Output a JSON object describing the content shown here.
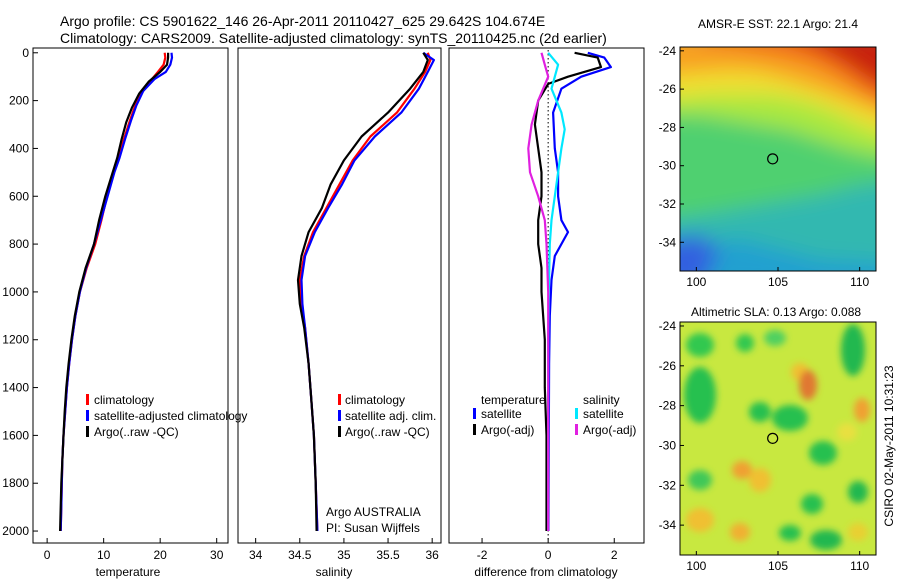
{
  "header": {
    "line1": "Argo profile: CS 5901622_146 26-Apr-2011 20110427_625 29.642S 104.674E",
    "line2": "Climatology: CARS2009. Satellite-adjusted climatology: synTS_20110425.nc (2d earlier)"
  },
  "colors": {
    "red": "#ff0000",
    "blue": "#0000ff",
    "black": "#000000",
    "cyan": "#00e8ff",
    "magenta": "#e020e0"
  },
  "chart_data": [
    {
      "type": "line",
      "xlabel": "temperature",
      "ylabel": "",
      "xlim": [
        -2.5,
        32
      ],
      "ylim": [
        2050,
        -20
      ],
      "xticks": [
        0,
        10,
        20,
        30
      ],
      "yticks": [
        0,
        200,
        400,
        600,
        800,
        1000,
        1200,
        1400,
        1600,
        1800,
        2000
      ],
      "legend": [
        "climatology",
        "satellite-adjusted climatology",
        "Argo(..raw -QC)"
      ],
      "series": [
        {
          "name": "climatology",
          "color": "red",
          "points": [
            [
              20.8,
              0
            ],
            [
              20.9,
              20
            ],
            [
              20.6,
              50
            ],
            [
              19.6,
              80
            ],
            [
              18.2,
              120
            ],
            [
              16.7,
              170
            ],
            [
              15.6,
              220
            ],
            [
              14.7,
              280
            ],
            [
              13.6,
              360
            ],
            [
              12.6,
              440
            ],
            [
              11.8,
              500
            ],
            [
              10.6,
              600
            ],
            [
              9.6,
              700
            ],
            [
              8.5,
              800
            ],
            [
              7.0,
              900
            ],
            [
              5.8,
              1000
            ],
            [
              5.0,
              1100
            ],
            [
              4.4,
              1200
            ],
            [
              3.9,
              1300
            ],
            [
              3.5,
              1400
            ],
            [
              3.2,
              1500
            ],
            [
              2.9,
              1600
            ],
            [
              2.7,
              1700
            ],
            [
              2.6,
              1800
            ],
            [
              2.5,
              1900
            ],
            [
              2.4,
              2000
            ]
          ]
        },
        {
          "name": "satellite-adjusted climatology",
          "color": "blue",
          "points": [
            [
              22.0,
              0
            ],
            [
              22.1,
              20
            ],
            [
              21.8,
              50
            ],
            [
              21.0,
              80
            ],
            [
              19.0,
              110
            ],
            [
              17.0,
              160
            ],
            [
              15.8,
              220
            ],
            [
              14.9,
              280
            ],
            [
              13.8,
              360
            ],
            [
              12.8,
              440
            ],
            [
              11.9,
              500
            ],
            [
              10.7,
              600
            ],
            [
              9.5,
              700
            ],
            [
              8.3,
              800
            ],
            [
              6.9,
              900
            ],
            [
              5.8,
              1000
            ],
            [
              5.0,
              1100
            ],
            [
              4.4,
              1200
            ],
            [
              3.9,
              1300
            ],
            [
              3.5,
              1400
            ],
            [
              3.2,
              1500
            ],
            [
              2.9,
              1600
            ],
            [
              2.7,
              1700
            ],
            [
              2.6,
              1800
            ],
            [
              2.5,
              1900
            ],
            [
              2.4,
              2000
            ]
          ]
        },
        {
          "name": "Argo(..raw -QC)",
          "color": "black",
          "points": [
            [
              21.4,
              0
            ],
            [
              21.4,
              20
            ],
            [
              21.2,
              50
            ],
            [
              20.0,
              80
            ],
            [
              18.0,
              120
            ],
            [
              16.3,
              170
            ],
            [
              15.0,
              230
            ],
            [
              14.0,
              290
            ],
            [
              13.2,
              360
            ],
            [
              12.4,
              440
            ],
            [
              11.6,
              500
            ],
            [
              10.3,
              600
            ],
            [
              9.2,
              700
            ],
            [
              8.3,
              800
            ],
            [
              6.8,
              900
            ],
            [
              5.7,
              1000
            ],
            [
              4.9,
              1100
            ],
            [
              4.3,
              1200
            ],
            [
              3.8,
              1300
            ],
            [
              3.4,
              1400
            ],
            [
              3.1,
              1500
            ],
            [
              2.9,
              1600
            ],
            [
              2.7,
              1700
            ],
            [
              2.5,
              1800
            ],
            [
              2.4,
              1900
            ],
            [
              2.3,
              2000
            ]
          ]
        }
      ]
    },
    {
      "type": "line",
      "xlabel": "salinity",
      "ylabel": "",
      "xlim": [
        33.8,
        36.1
      ],
      "ylim": [
        2050,
        -20
      ],
      "xticks": [
        "34",
        "34.5",
        "35",
        "35.5",
        "36"
      ],
      "yticks": [],
      "legend": [
        "climatology",
        "satellite adj. clim.",
        "Argo(..raw -QC)"
      ],
      "annotation": [
        "Argo AUSTRALIA",
        "PI: Susan Wijffels"
      ],
      "series": [
        {
          "name": "climatology",
          "color": "red",
          "points": [
            [
              35.95,
              0
            ],
            [
              35.98,
              30
            ],
            [
              35.92,
              80
            ],
            [
              35.8,
              150
            ],
            [
              35.6,
              250
            ],
            [
              35.3,
              350
            ],
            [
              35.1,
              450
            ],
            [
              34.95,
              550
            ],
            [
              34.8,
              650
            ],
            [
              34.65,
              750
            ],
            [
              34.55,
              850
            ],
            [
              34.5,
              950
            ],
            [
              34.52,
              1050
            ],
            [
              34.56,
              1150
            ],
            [
              34.6,
              1300
            ],
            [
              34.63,
              1450
            ],
            [
              34.66,
              1600
            ],
            [
              34.68,
              1800
            ],
            [
              34.7,
              2000
            ]
          ]
        },
        {
          "name": "satellite adj. clim.",
          "color": "blue",
          "points": [
            [
              35.9,
              0
            ],
            [
              36.02,
              30
            ],
            [
              35.95,
              80
            ],
            [
              35.85,
              150
            ],
            [
              35.65,
              250
            ],
            [
              35.35,
              350
            ],
            [
              35.12,
              450
            ],
            [
              34.98,
              550
            ],
            [
              34.82,
              650
            ],
            [
              34.67,
              750
            ],
            [
              34.56,
              850
            ],
            [
              34.52,
              950
            ],
            [
              34.53,
              1050
            ],
            [
              34.56,
              1150
            ],
            [
              34.6,
              1300
            ],
            [
              34.63,
              1450
            ],
            [
              34.66,
              1600
            ],
            [
              34.68,
              1800
            ],
            [
              34.7,
              2000
            ]
          ]
        },
        {
          "name": "Argo(..raw -QC)",
          "color": "black",
          "points": [
            [
              35.9,
              0
            ],
            [
              35.95,
              30
            ],
            [
              35.9,
              80
            ],
            [
              35.75,
              150
            ],
            [
              35.5,
              250
            ],
            [
              35.2,
              350
            ],
            [
              35.0,
              450
            ],
            [
              34.85,
              550
            ],
            [
              34.75,
              650
            ],
            [
              34.6,
              750
            ],
            [
              34.52,
              850
            ],
            [
              34.48,
              950
            ],
            [
              34.5,
              1050
            ],
            [
              34.55,
              1150
            ],
            [
              34.6,
              1300
            ],
            [
              34.63,
              1450
            ],
            [
              34.66,
              1600
            ],
            [
              34.68,
              1800
            ],
            [
              34.69,
              2000
            ]
          ]
        }
      ]
    },
    {
      "type": "line",
      "xlabel": "difference from climatology",
      "ylabel": "",
      "xlim": [
        -3.0,
        2.9
      ],
      "ylim": [
        2050,
        -20
      ],
      "xticks": [
        "-2",
        "0",
        "2"
      ],
      "yticks": [],
      "legend": [
        "temperature",
        "satellite",
        "Argo(-adj)",
        "salinity",
        "satellite",
        "Argo(-adj)"
      ],
      "series": [
        {
          "name": "satellite",
          "quantity": "temperature",
          "color": "blue",
          "points": [
            [
              1.2,
              0
            ],
            [
              1.7,
              20
            ],
            [
              1.9,
              60
            ],
            [
              1.0,
              100
            ],
            [
              0.4,
              150
            ],
            [
              0.15,
              250
            ],
            [
              0.2,
              400
            ],
            [
              0.3,
              500
            ],
            [
              0.3,
              600
            ],
            [
              0.4,
              700
            ],
            [
              0.6,
              750
            ],
            [
              0.2,
              850
            ],
            [
              0.1,
              950
            ],
            [
              0.05,
              1100
            ],
            [
              0.03,
              1300
            ],
            [
              0.02,
              1600
            ],
            [
              0.01,
              2000
            ]
          ]
        },
        {
          "name": "Argo(-adj)",
          "quantity": "temperature",
          "color": "black",
          "points": [
            [
              0.8,
              0
            ],
            [
              1.5,
              20
            ],
            [
              1.6,
              60
            ],
            [
              0.6,
              100
            ],
            [
              0.0,
              130
            ],
            [
              -0.3,
              200
            ],
            [
              -0.4,
              300
            ],
            [
              -0.3,
              400
            ],
            [
              -0.2,
              500
            ],
            [
              -0.2,
              600
            ],
            [
              -0.3,
              700
            ],
            [
              -0.3,
              800
            ],
            [
              -0.2,
              900
            ],
            [
              -0.2,
              1000
            ],
            [
              -0.1,
              1200
            ],
            [
              -0.1,
              1400
            ],
            [
              -0.05,
              1600
            ],
            [
              -0.05,
              2000
            ]
          ]
        },
        {
          "name": "satellite",
          "quantity": "salinity",
          "color": "cyan",
          "points": [
            [
              0.0,
              0
            ],
            [
              0.3,
              50
            ],
            [
              0.2,
              100
            ],
            [
              0.1,
              150
            ],
            [
              0.4,
              250
            ],
            [
              0.5,
              320
            ],
            [
              0.4,
              400
            ],
            [
              0.3,
              500
            ],
            [
              0.2,
              600
            ],
            [
              0.1,
              700
            ],
            [
              0.05,
              800
            ],
            [
              0.02,
              1000
            ],
            [
              0.0,
              1200
            ],
            [
              0.0,
              1600
            ],
            [
              0.0,
              2000
            ]
          ]
        },
        {
          "name": "Argo(-adj)",
          "quantity": "salinity",
          "color": "magenta",
          "points": [
            [
              -0.2,
              0
            ],
            [
              -0.1,
              50
            ],
            [
              0.0,
              100
            ],
            [
              -0.3,
              200
            ],
            [
              -0.5,
              300
            ],
            [
              -0.6,
              400
            ],
            [
              -0.55,
              500
            ],
            [
              -0.3,
              600
            ],
            [
              -0.1,
              700
            ],
            [
              -0.05,
              800
            ],
            [
              0.0,
              1000
            ],
            [
              0.0,
              1200
            ],
            [
              0.0,
              1600
            ],
            [
              0.0,
              2000
            ]
          ]
        }
      ]
    },
    {
      "type": "heatmap",
      "title": "AMSR-E SST: 22.1 Argo: 21.4",
      "xlim": [
        99,
        111
      ],
      "ylim": [
        -35.5,
        -23.8
      ],
      "xticks": [
        "100",
        "105",
        "110"
      ],
      "yticks": [
        "-24",
        "-26",
        "-28",
        "-30",
        "-32",
        "-34"
      ],
      "marker": {
        "lon": 104.674,
        "lat": -29.642
      }
    },
    {
      "type": "heatmap",
      "title": "Altimetric SLA: 0.13 Argo: 0.088",
      "xlim": [
        99,
        111
      ],
      "ylim": [
        -35.5,
        -23.8
      ],
      "xticks": [
        "100",
        "105",
        "110"
      ],
      "yticks": [
        "-24",
        "-26",
        "-28",
        "-30",
        "-32",
        "-34"
      ],
      "marker": {
        "lon": 104.674,
        "lat": -29.642
      }
    }
  ],
  "footer": {
    "timestamp": "CSIRO 02-May-2011 10:31:23"
  }
}
